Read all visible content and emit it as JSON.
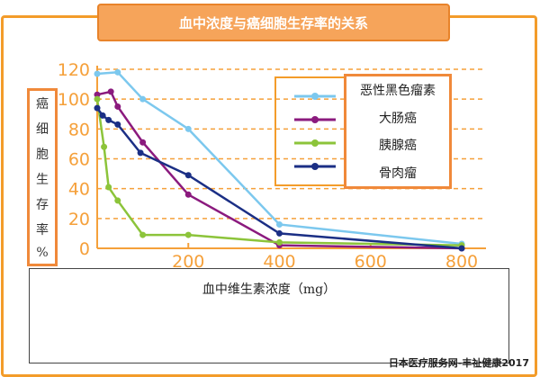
{
  "chart_data": {
    "type": "line",
    "title": "血中浓度与癌细胞生存率的关系",
    "xlabel": "血中维生素浓度（mg）",
    "ylabel": "癌细胞生存率%",
    "xlim": [
      0,
      800
    ],
    "ylim": [
      0,
      120
    ],
    "xticks": [
      200,
      400,
      600,
      800
    ],
    "yticks": [
      0,
      20,
      40,
      60,
      80,
      100,
      120
    ],
    "grid": "horizontal-dashed",
    "legend_position": "top-right",
    "series": [
      {
        "name": "恶性黑色瘤素",
        "color": "#7cc8ee",
        "x": [
          0,
          45,
          100,
          200,
          400,
          800
        ],
        "y": [
          117,
          118,
          100,
          80,
          16,
          3
        ]
      },
      {
        "name": "大肠癌",
        "color": "#8b1a7e",
        "x": [
          0,
          30,
          45,
          100,
          200,
          400,
          800
        ],
        "y": [
          103,
          105,
          95,
          71,
          36,
          2,
          0
        ]
      },
      {
        "name": "胰腺癌",
        "color": "#8cc43a",
        "x": [
          0,
          15,
          25,
          45,
          100,
          200,
          400,
          800
        ],
        "y": [
          100,
          68,
          41,
          32,
          9,
          9,
          4,
          2
        ]
      },
      {
        "name": "骨肉瘤",
        "color": "#1b2f85",
        "x": [
          0,
          12,
          25,
          45,
          95,
          200,
          400,
          800
        ],
        "y": [
          94,
          89,
          86,
          83,
          64,
          49,
          10,
          0
        ]
      }
    ]
  },
  "ylabel_chars": [
    "癌",
    "细",
    "胞",
    "生",
    "存",
    "率",
    "%"
  ],
  "watermark": "日本医疗服务网-丰祉健康2017"
}
